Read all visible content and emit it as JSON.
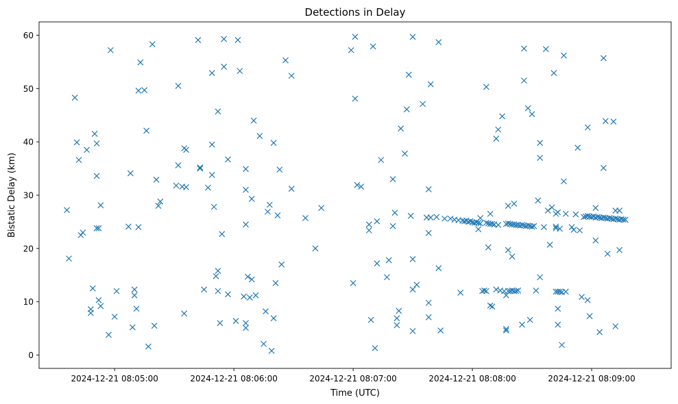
{
  "chart_data": {
    "type": "scatter",
    "title": "Detections in Delay",
    "xlabel": "Time (UTC)",
    "ylabel": "Bistatic Delay (km)",
    "x_tick_labels": [
      "2024-12-21 08:05:00",
      "2024-12-21 08:06:00",
      "2024-12-21 08:07:00",
      "2024-12-21 08:08:00",
      "2024-12-21 08:09:00"
    ],
    "x_tick_values": [
      300,
      360,
      420,
      480,
      540
    ],
    "x_unit_note": "",
    "xlim": [
      262,
      580
    ],
    "y_tick_values": [
      0,
      10,
      20,
      30,
      40,
      50,
      60
    ],
    "ylim": [
      -2.5,
      62.5
    ],
    "marker": "x",
    "color": "#1f77b4",
    "grid": false,
    "legend": "none",
    "series": [
      {
        "points": [
          [
            276,
            27.2
          ],
          [
            277,
            18.1
          ],
          [
            280,
            48.3
          ],
          [
            281,
            39.9
          ],
          [
            282,
            36.6
          ],
          [
            283,
            22.5
          ],
          [
            284,
            23.0
          ],
          [
            286,
            38.5
          ],
          [
            288,
            8.6
          ],
          [
            288,
            7.9
          ],
          [
            289,
            12.5
          ],
          [
            290,
            41.5
          ],
          [
            291,
            33.6
          ],
          [
            291,
            39.7
          ],
          [
            291,
            23.8
          ],
          [
            292,
            23.8
          ],
          [
            292,
            10.3
          ],
          [
            293,
            28.1
          ],
          [
            293,
            9.2
          ],
          [
            297,
            3.8
          ],
          [
            298,
            57.2
          ],
          [
            300,
            7.2
          ],
          [
            301,
            12.0
          ],
          [
            307,
            24.1
          ],
          [
            308,
            34.1
          ],
          [
            309,
            5.2
          ],
          [
            310,
            12.3
          ],
          [
            310,
            11.2
          ],
          [
            311,
            8.7
          ],
          [
            312,
            24.0
          ],
          [
            312,
            49.6
          ],
          [
            313,
            54.9
          ],
          [
            315,
            49.7
          ],
          [
            316,
            42.1
          ],
          [
            317,
            1.6
          ],
          [
            319,
            58.3
          ],
          [
            320,
            5.5
          ],
          [
            321,
            32.9
          ],
          [
            322,
            28.0
          ],
          [
            323,
            28.8
          ],
          [
            331,
            31.8
          ],
          [
            332,
            35.6
          ],
          [
            332,
            50.5
          ],
          [
            334,
            31.6
          ],
          [
            335,
            38.8
          ],
          [
            335,
            7.8
          ],
          [
            336,
            31.5
          ],
          [
            336,
            38.5
          ],
          [
            342,
            59.1
          ],
          [
            343,
            35.2
          ],
          [
            343,
            35.0
          ],
          [
            345,
            12.3
          ],
          [
            347,
            31.4
          ],
          [
            349,
            33.8
          ],
          [
            349,
            39.5
          ],
          [
            349,
            52.9
          ],
          [
            350,
            27.8
          ],
          [
            351,
            14.8
          ],
          [
            352,
            15.8
          ],
          [
            352,
            12.0
          ],
          [
            352,
            45.7
          ],
          [
            353,
            6.0
          ],
          [
            354,
            22.7
          ],
          [
            355,
            59.3
          ],
          [
            355,
            54.1
          ],
          [
            357,
            11.4
          ],
          [
            357,
            36.7
          ],
          [
            361,
            6.4
          ],
          [
            362,
            59.1
          ],
          [
            363,
            53.3
          ],
          [
            365,
            11.0
          ],
          [
            366,
            31.0
          ],
          [
            366,
            34.9
          ],
          [
            366,
            6.0
          ],
          [
            366,
            5.1
          ],
          [
            366,
            24.5
          ],
          [
            367,
            14.7
          ],
          [
            368,
            10.8
          ],
          [
            369,
            14.2
          ],
          [
            369,
            29.3
          ],
          [
            370,
            44.0
          ],
          [
            371,
            11.2
          ],
          [
            373,
            41.1
          ],
          [
            375,
            2.1
          ],
          [
            376,
            8.2
          ],
          [
            377,
            26.9
          ],
          [
            378,
            28.2
          ],
          [
            379,
            0.8
          ],
          [
            380,
            39.8
          ],
          [
            380,
            6.9
          ],
          [
            381,
            13.5
          ],
          [
            382,
            26.2
          ],
          [
            383,
            34.8
          ],
          [
            384,
            17.0
          ],
          [
            386,
            55.3
          ],
          [
            389,
            31.2
          ],
          [
            389,
            52.4
          ],
          [
            396,
            25.7
          ],
          [
            401,
            20.0
          ],
          [
            404,
            27.6
          ],
          [
            419,
            57.2
          ],
          [
            420,
            13.5
          ],
          [
            421,
            48.1
          ],
          [
            421,
            59.7
          ],
          [
            422,
            31.9
          ],
          [
            424,
            31.6
          ],
          [
            428,
            24.5
          ],
          [
            428,
            23.4
          ],
          [
            429,
            6.6
          ],
          [
            430,
            57.9
          ],
          [
            431,
            1.3
          ],
          [
            432,
            17.2
          ],
          [
            432,
            25.1
          ],
          [
            434,
            36.6
          ],
          [
            437,
            14.6
          ],
          [
            438,
            17.8
          ],
          [
            440,
            24.2
          ],
          [
            440,
            33.0
          ],
          [
            441,
            26.7
          ],
          [
            442,
            6.9
          ],
          [
            442,
            5.6
          ],
          [
            443,
            8.3
          ],
          [
            444,
            42.5
          ],
          [
            446,
            37.8
          ],
          [
            447,
            46.1
          ],
          [
            448,
            52.6
          ],
          [
            449,
            26.1
          ],
          [
            450,
            59.7
          ],
          [
            450,
            12.3
          ],
          [
            450,
            18.0
          ],
          [
            450,
            4.5
          ],
          [
            452,
            13.2
          ],
          [
            455,
            47.1
          ],
          [
            457,
            25.8
          ],
          [
            458,
            31.1
          ],
          [
            458,
            22.9
          ],
          [
            458,
            7.1
          ],
          [
            458,
            9.8
          ],
          [
            459,
            50.8
          ],
          [
            459,
            25.8
          ],
          [
            462,
            25.9
          ],
          [
            463,
            16.3
          ],
          [
            463,
            58.7
          ],
          [
            464,
            4.6
          ],
          [
            466,
            25.6
          ],
          [
            469,
            25.6
          ],
          [
            471,
            25.4
          ],
          [
            473,
            25.3
          ],
          [
            474,
            11.7
          ],
          [
            475,
            25.2
          ],
          [
            476,
            25.1
          ],
          [
            477,
            25.2
          ],
          [
            478,
            25.0
          ],
          [
            479,
            25.1
          ],
          [
            480,
            24.9
          ],
          [
            481,
            24.8
          ],
          [
            482,
            24.9
          ],
          [
            483,
            24.8
          ],
          [
            483,
            23.6
          ],
          [
            484,
            24.7
          ],
          [
            484,
            25.7
          ],
          [
            485,
            12.0
          ],
          [
            486,
            12.1
          ],
          [
            487,
            12.0
          ],
          [
            487,
            24.8
          ],
          [
            487,
            50.3
          ],
          [
            488,
            24.7
          ],
          [
            488,
            20.2
          ],
          [
            489,
            9.3
          ],
          [
            489,
            24.6
          ],
          [
            489,
            26.5
          ],
          [
            490,
            24.6
          ],
          [
            490,
            9.1
          ],
          [
            491,
            24.5
          ],
          [
            492,
            12.3
          ],
          [
            492,
            40.6
          ],
          [
            493,
            24.4
          ],
          [
            493,
            42.3
          ],
          [
            494,
            12.1
          ],
          [
            495,
            44.8
          ],
          [
            496,
            12.0
          ],
          [
            497,
            11.2
          ],
          [
            497,
            4.9
          ],
          [
            497,
            4.6
          ],
          [
            497,
            24.6
          ],
          [
            498,
            24.7
          ],
          [
            498,
            12.0
          ],
          [
            498,
            28.0
          ],
          [
            498,
            19.7
          ],
          [
            499,
            24.6
          ],
          [
            499,
            12.0
          ],
          [
            500,
            12.1
          ],
          [
            500,
            24.5
          ],
          [
            500,
            18.5
          ],
          [
            501,
            24.5
          ],
          [
            501,
            28.4
          ],
          [
            501,
            12.0
          ],
          [
            502,
            24.4
          ],
          [
            502,
            12.0
          ],
          [
            503,
            24.4
          ],
          [
            503,
            12.1
          ],
          [
            504,
            24.3
          ],
          [
            505,
            24.4
          ],
          [
            505,
            5.7
          ],
          [
            506,
            24.3
          ],
          [
            506,
            57.5
          ],
          [
            506,
            51.5
          ],
          [
            507,
            24.2
          ],
          [
            508,
            24.3
          ],
          [
            508,
            46.3
          ],
          [
            509,
            24.2
          ],
          [
            509,
            6.6
          ],
          [
            510,
            24.1
          ],
          [
            510,
            45.2
          ],
          [
            511,
            24.2
          ],
          [
            512,
            12.1
          ],
          [
            513,
            29.0
          ],
          [
            514,
            14.6
          ],
          [
            514,
            39.8
          ],
          [
            514,
            37.0
          ],
          [
            516,
            24.0
          ],
          [
            517,
            57.4
          ],
          [
            518,
            27.1
          ],
          [
            519,
            20.7
          ],
          [
            520,
            27.7
          ],
          [
            521,
            52.9
          ],
          [
            522,
            24.1
          ],
          [
            522,
            26.5
          ],
          [
            522,
            23.8
          ],
          [
            522,
            11.9
          ],
          [
            523,
            26.8
          ],
          [
            523,
            8.7
          ],
          [
            523,
            11.9
          ],
          [
            523,
            5.7
          ],
          [
            524,
            23.7
          ],
          [
            524,
            11.9
          ],
          [
            525,
            1.9
          ],
          [
            525,
            11.8
          ],
          [
            526,
            56.2
          ],
          [
            526,
            32.6
          ],
          [
            527,
            26.5
          ],
          [
            527,
            11.9
          ],
          [
            530,
            24.0
          ],
          [
            531,
            23.5
          ],
          [
            532,
            26.4
          ],
          [
            533,
            38.9
          ],
          [
            534,
            23.4
          ],
          [
            535,
            10.9
          ],
          [
            536,
            25.9
          ],
          [
            537,
            26.0
          ],
          [
            538,
            42.7
          ],
          [
            538,
            26.1
          ],
          [
            538,
            10.3
          ],
          [
            539,
            7.3
          ],
          [
            539,
            26.0
          ],
          [
            540,
            25.9
          ],
          [
            541,
            26.0
          ],
          [
            542,
            27.6
          ],
          [
            542,
            25.8
          ],
          [
            542,
            21.5
          ],
          [
            543,
            25.9
          ],
          [
            544,
            4.3
          ],
          [
            544,
            25.8
          ],
          [
            545,
            25.7
          ],
          [
            546,
            25.8
          ],
          [
            546,
            35.1
          ],
          [
            546,
            55.7
          ],
          [
            547,
            25.7
          ],
          [
            547,
            43.9
          ],
          [
            548,
            25.6
          ],
          [
            548,
            19.0
          ],
          [
            549,
            25.7
          ],
          [
            550,
            25.6
          ],
          [
            551,
            25.5
          ],
          [
            551,
            43.8
          ],
          [
            552,
            25.6
          ],
          [
            552,
            27.1
          ],
          [
            552,
            5.4
          ],
          [
            553,
            25.5
          ],
          [
            554,
            25.4
          ],
          [
            554,
            27.1
          ],
          [
            554,
            19.7
          ],
          [
            555,
            25.5
          ],
          [
            556,
            25.4
          ],
          [
            557,
            25.4
          ]
        ]
      }
    ]
  }
}
